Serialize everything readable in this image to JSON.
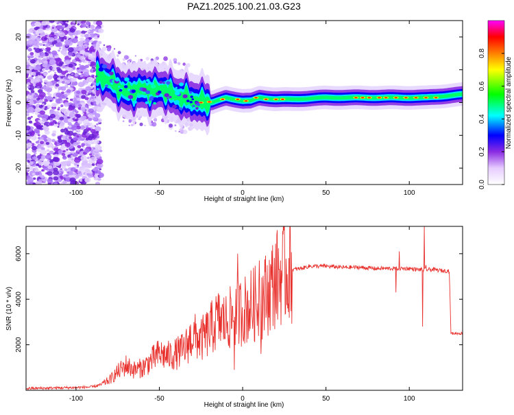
{
  "figure_title": "PAZ1.2025.100.21.03.G23",
  "chart_data": [
    {
      "type": "heatmap",
      "xlabel": "Height of straight line (km)",
      "ylabel": "Frequency (Hz)",
      "xlim": [
        -130,
        132
      ],
      "ylim": [
        -25,
        25
      ],
      "xticks": [
        -100,
        -50,
        0,
        50,
        100
      ],
      "yticks": [
        -20,
        -10,
        0,
        10,
        20
      ],
      "colorbar": {
        "label": "Normalized spectral amplitude",
        "ticks": [
          0.0,
          0.2,
          0.4,
          0.6,
          0.8
        ],
        "range": [
          0,
          1
        ],
        "colormap": [
          "#ffffff",
          "#e6ccff",
          "#8a2be2",
          "#0000ff",
          "#00ffff",
          "#00ff00",
          "#ffff00",
          "#ff8000",
          "#ff0000",
          "#ff00ff"
        ]
      },
      "ridge_x": [
        -85,
        -78,
        -70,
        -62,
        -55,
        -48,
        -40,
        -32,
        -25,
        -18,
        -10,
        -5,
        0,
        5,
        10,
        20,
        30,
        50,
        70,
        90,
        110,
        132
      ],
      "ridge_y": [
        8,
        6,
        3,
        4,
        3.5,
        4,
        2,
        1,
        0,
        0,
        1.5,
        1,
        0.5,
        0.5,
        1.5,
        1,
        1,
        1.5,
        1.5,
        1.5,
        1.5,
        2.5
      ]
    },
    {
      "type": "line",
      "xlabel": "Height of straight line (km)",
      "ylabel": "SNR (10 * v/v)",
      "xlim": [
        -130,
        132
      ],
      "ylim": [
        0,
        7200
      ],
      "xticks": [
        -100,
        -50,
        0,
        50,
        100
      ],
      "yticks": [
        2000,
        4000,
        6000
      ],
      "line_color": "#e8302c",
      "x": [
        -130,
        -100,
        -90,
        -85,
        -80,
        -75,
        -70,
        -65,
        -60,
        -55,
        -50,
        -45,
        -40,
        -35,
        -30,
        -25,
        -20,
        -15,
        -10,
        -5,
        0,
        5,
        10,
        15,
        20,
        25,
        30,
        35,
        40,
        50,
        60,
        70,
        80,
        90,
        95,
        100,
        105,
        110,
        115,
        120,
        124,
        125,
        132
      ],
      "y": [
        80,
        120,
        150,
        250,
        450,
        800,
        1100,
        900,
        1000,
        1300,
        1600,
        1500,
        1600,
        1800,
        2400,
        2200,
        2600,
        3100,
        3000,
        3300,
        3500,
        3700,
        3900,
        4300,
        4900,
        5200,
        5300,
        5350,
        5450,
        5450,
        5400,
        5400,
        5350,
        5350,
        5350,
        5350,
        5300,
        5300,
        5300,
        5250,
        5250,
        2500,
        2500
      ]
    }
  ]
}
